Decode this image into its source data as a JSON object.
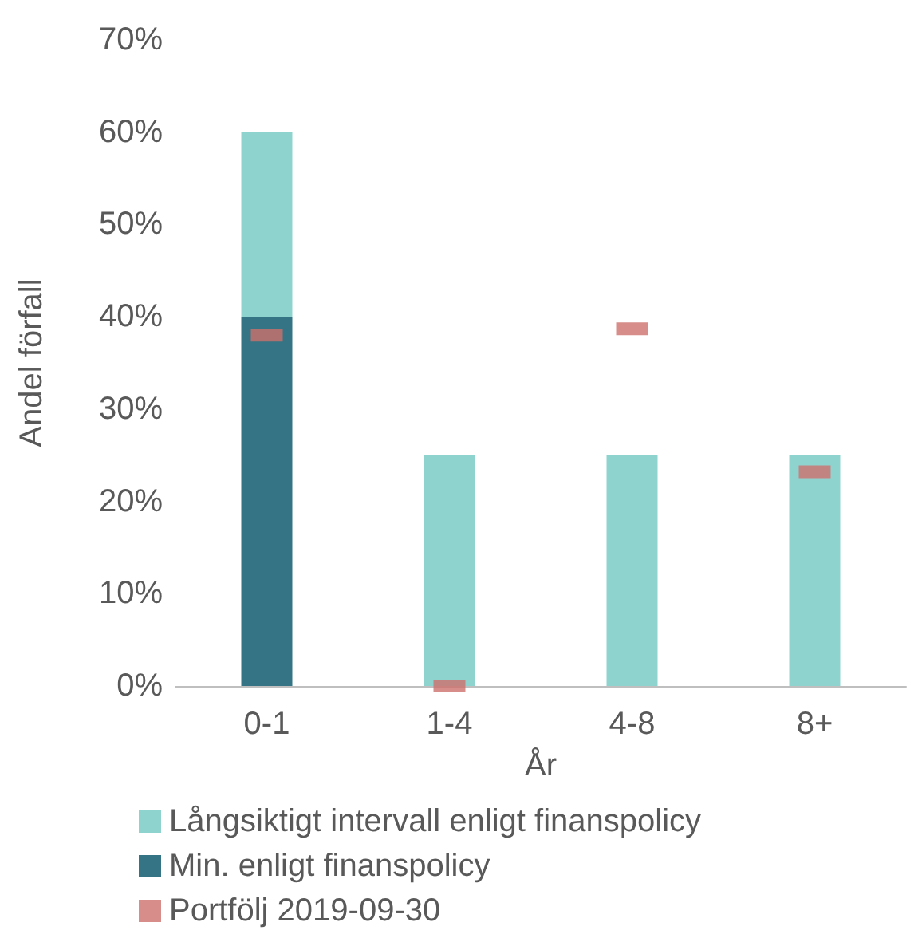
{
  "chart_data": {
    "type": "bar",
    "stacked": true,
    "xlabel": "År",
    "ylabel": "Andel förfall",
    "categories": [
      "0-1",
      "1-4",
      "4-8",
      "8+"
    ],
    "series": [
      {
        "name": "Min. enligt finanspolicy",
        "color": "#347484",
        "values": [
          40,
          0,
          0,
          0
        ]
      },
      {
        "name": "Långsiktigt intervall enligt finanspolicy",
        "color": "#8fd3cf",
        "values": [
          20,
          25,
          25,
          25
        ]
      },
      {
        "name": "Portfölj 2019-09-30",
        "type": "scatter",
        "color": "#cd706b",
        "values": [
          38,
          0,
          38.7,
          23.2
        ]
      }
    ],
    "ylim": [
      0,
      70
    ],
    "yticks": [
      {
        "value": 0,
        "label": "0%"
      },
      {
        "value": 10,
        "label": "10%"
      },
      {
        "value": 20,
        "label": "20%"
      },
      {
        "value": 30,
        "label": "30%"
      },
      {
        "value": 40,
        "label": "40%"
      },
      {
        "value": 50,
        "label": "50%"
      },
      {
        "value": 60,
        "label": "60%"
      },
      {
        "value": 70,
        "label": "70%"
      }
    ],
    "grid": false,
    "legend": "bottom",
    "marker": "square"
  }
}
